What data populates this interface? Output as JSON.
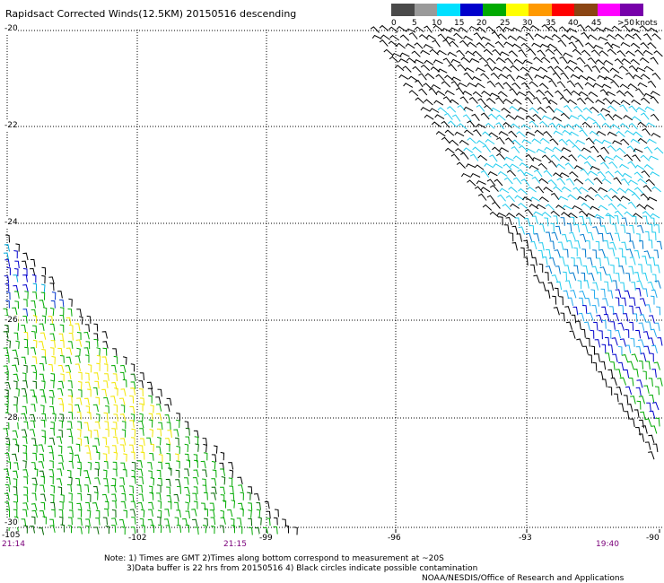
{
  "title": "Rapidsact Corrected Winds(12.5KM) 20150516 descending",
  "colorbar": {
    "labels": [
      "0",
      "5",
      "10",
      "15",
      "20",
      "25",
      "30",
      "35",
      "40",
      "45"
    ],
    "overflow_label": ">50",
    "unit": "knots",
    "colors": [
      "#4a4a4a",
      "#9a9a9a",
      "#00e0ff",
      "#0000cc",
      "#00aa00",
      "#ffff00",
      "#ff9900",
      "#ff0000",
      "#8b4513",
      "#ff00ff",
      "#7700aa"
    ]
  },
  "axes": {
    "lat_labels": [
      "-20",
      "-22",
      "-24",
      "-26",
      "-28",
      "-30"
    ],
    "lon_labels": [
      "-105",
      "-102",
      "-99",
      "-96",
      "-93",
      "-90"
    ]
  },
  "times": [
    "21:14",
    "21:15",
    "19:40"
  ],
  "notes": {
    "line1": "Note: 1) Times are GMT 2)Times along bottom correspond to measurement at ~20S",
    "line2": "3)Data buffer is 22 hrs from 20150516 4) Black circles indicate possible contamination",
    "line3": "NOAA/NESDIS/Office of Research and Applications"
  }
}
